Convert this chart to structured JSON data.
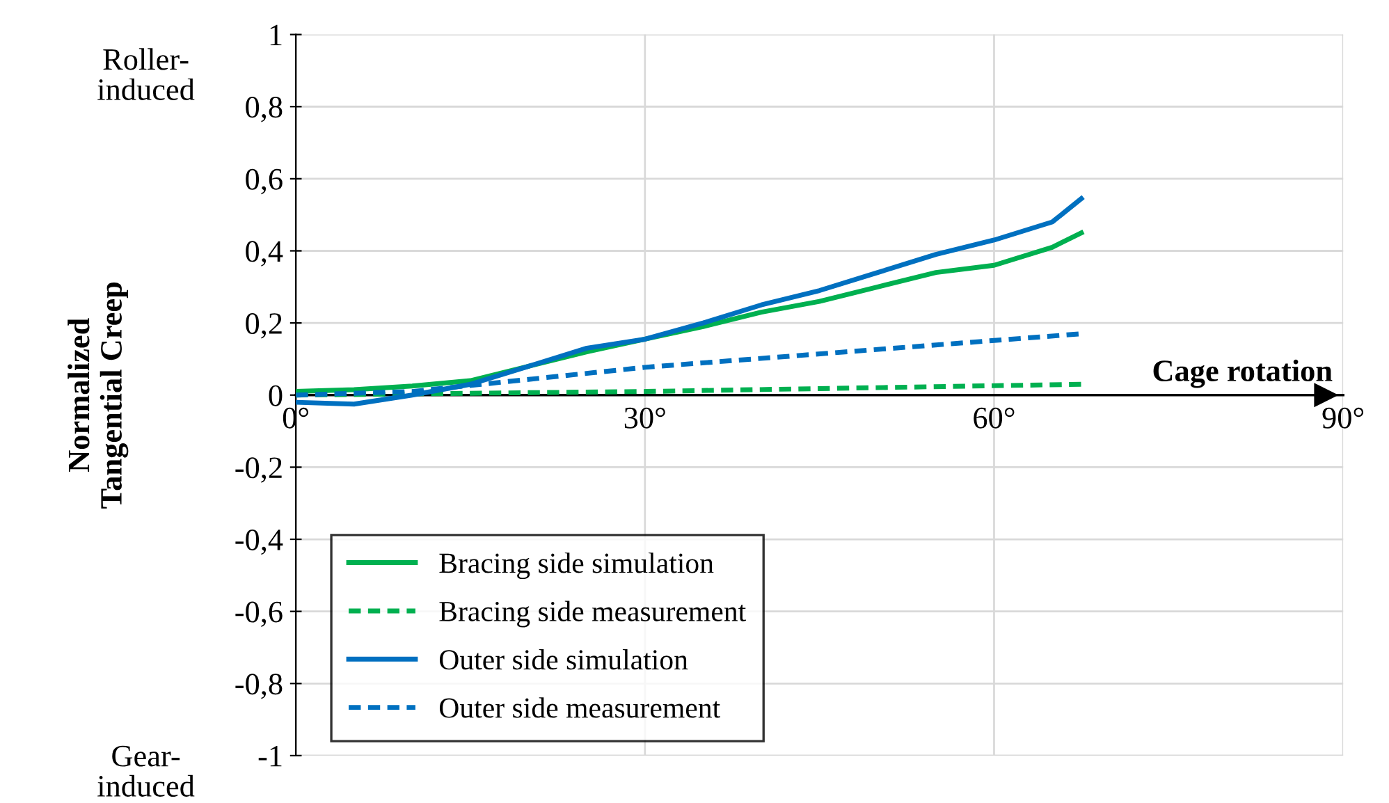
{
  "chart_data": {
    "type": "line",
    "xlabel": "Cage rotation",
    "ylabel": "Normalized\nTangential Creep",
    "annotations": [
      "Roller-\ninduced",
      "Gear-\ninduced"
    ],
    "xlim": [
      0,
      90
    ],
    "xticks": [
      {
        "value": 0,
        "label": "0°"
      },
      {
        "value": 30,
        "label": "30°"
      },
      {
        "value": 60,
        "label": "60°"
      },
      {
        "value": 90,
        "label": "90°"
      }
    ],
    "ylim": [
      -1,
      1
    ],
    "yticks": [
      {
        "value": -1,
        "label": "-1"
      },
      {
        "value": -0.8,
        "label": "-0,8"
      },
      {
        "value": -0.6,
        "label": "-0,6"
      },
      {
        "value": -0.4,
        "label": "-0,4"
      },
      {
        "value": -0.2,
        "label": "-0,2"
      },
      0,
      {
        "value": 0.2,
        "label": "0,2"
      },
      {
        "value": 0.4,
        "label": "0,4"
      },
      {
        "value": 0.6,
        "label": "0,6"
      },
      {
        "value": 0.8,
        "label": "0,8"
      },
      1
    ],
    "grid": true,
    "legend": "bottom left",
    "marker": "none",
    "series": [
      {
        "name": "Bracing side simulation",
        "color": "#00b050",
        "line_style": "solid",
        "x": [
          0,
          5,
          10,
          15,
          20,
          25,
          30,
          35,
          40,
          45,
          50,
          55,
          60,
          65,
          67.5
        ],
        "values": [
          0.01,
          0.015,
          0.025,
          0.04,
          0.08,
          0.12,
          0.155,
          0.19,
          0.23,
          0.26,
          0.3,
          0.34,
          0.36,
          0.41,
          0.45
        ]
      },
      {
        "name": "Bracing side measurement",
        "color": "#00b050",
        "line_style": "dotted",
        "x": [
          0,
          30,
          67.5
        ],
        "values": [
          0,
          0.01,
          0.03
        ]
      },
      {
        "name": "Outer side simulation",
        "color": "#0070c0",
        "line_style": "solid",
        "x": [
          0,
          5,
          10,
          15,
          20,
          25,
          30,
          35,
          40,
          45,
          50,
          55,
          60,
          65,
          67.5
        ],
        "values": [
          -0.02,
          -0.025,
          0,
          0.03,
          0.08,
          0.13,
          0.155,
          0.2,
          0.25,
          0.29,
          0.34,
          0.39,
          0.43,
          0.48,
          0.545
        ]
      },
      {
        "name": "Outer side measurement",
        "color": "#0070c0",
        "line_style": "dotted",
        "x": [
          0,
          10,
          30,
          67.5
        ],
        "values": [
          0,
          0.01,
          0.077,
          0.17
        ]
      }
    ]
  }
}
